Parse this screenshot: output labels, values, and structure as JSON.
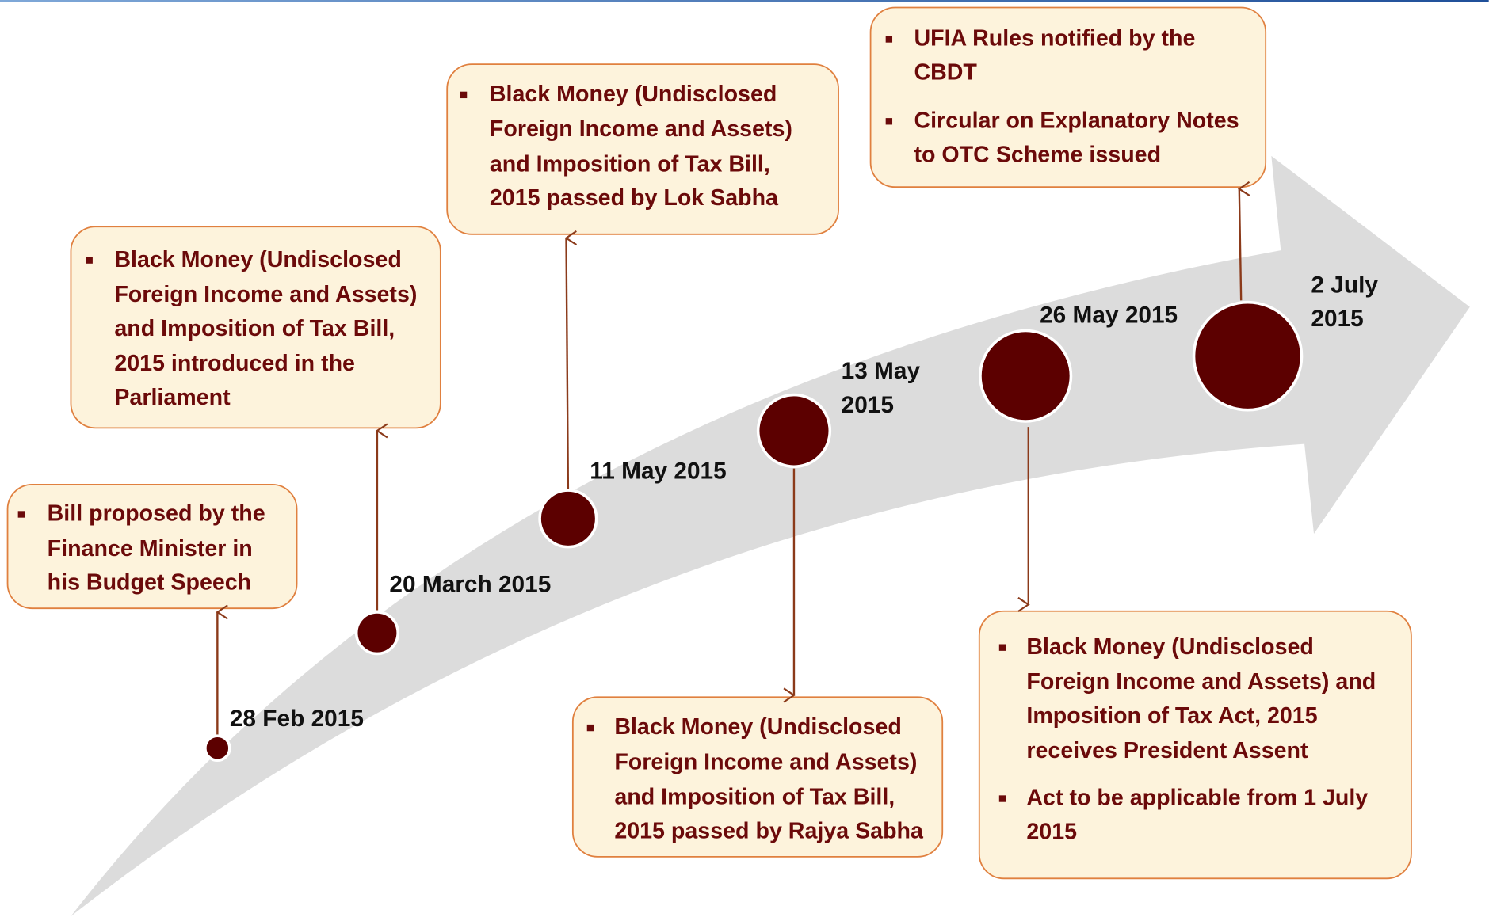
{
  "events": [
    {
      "date_lines": [
        "28 Feb 2015"
      ],
      "items": [
        [
          "Bill proposed by the",
          "Finance Minister in",
          "his Budget Speech"
        ]
      ]
    },
    {
      "date_lines": [
        "20 March 2015"
      ],
      "items": [
        [
          "Black Money (Undisclosed",
          "Foreign Income and Assets)",
          "and Imposition of Tax Bill,",
          "2015 introduced in the",
          "Parliament"
        ]
      ]
    },
    {
      "date_lines": [
        "11 May 2015"
      ],
      "items": [
        [
          "Black Money (Undisclosed",
          "Foreign Income and Assets)",
          "and Imposition of Tax Bill,",
          "2015 passed by Lok Sabha"
        ]
      ]
    },
    {
      "date_lines": [
        "13 May",
        "2015"
      ],
      "items": [
        [
          "Black Money (Undisclosed",
          "Foreign Income and Assets)",
          "and Imposition of Tax Bill,",
          "2015 passed by Rajya Sabha"
        ]
      ]
    },
    {
      "date_lines": [
        "26 May 2015"
      ],
      "items": [
        [
          "Black Money (Undisclosed",
          "Foreign Income and Assets) and",
          "Imposition of Tax Act, 2015",
          "receives President Assent"
        ],
        [
          "Act to be applicable from 1 July",
          "2015"
        ]
      ]
    },
    {
      "date_lines": [
        "2 July",
        "2015"
      ],
      "items": [
        [
          "UFIA Rules notified by the",
          "CBDT"
        ],
        [
          "Circular on Explanatory Notes",
          "to OTC Scheme issued"
        ]
      ]
    }
  ]
}
